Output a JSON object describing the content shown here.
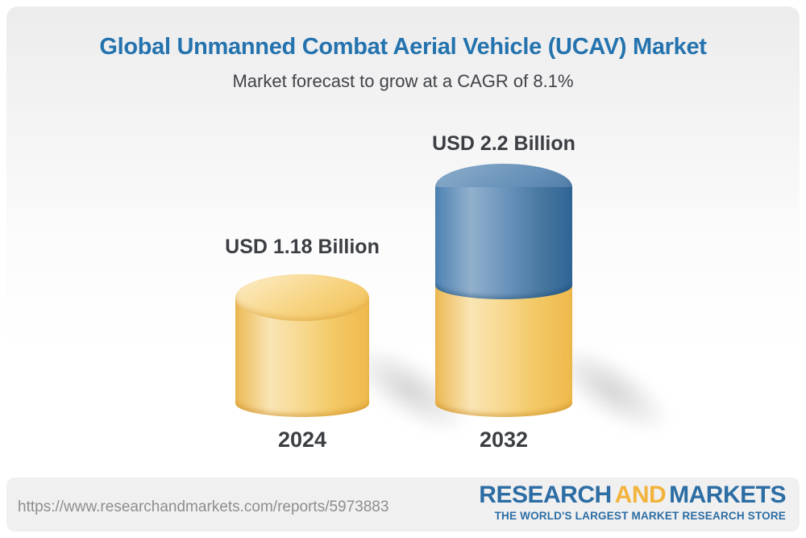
{
  "header": {
    "title": "Global Unmanned Combat Aerial Vehicle (UCAV) Market",
    "subtitle": "Market forecast to grow at a CAGR of 8.1%"
  },
  "chart_data": {
    "type": "bar",
    "categories": [
      "2024",
      "2032"
    ],
    "values": [
      1.18,
      2.2
    ],
    "value_labels": [
      "USD 1.18 Billion",
      "USD 2.2 Billion"
    ],
    "units": "USD Billion",
    "cagr": "8.1%",
    "title": "Global Unmanned Combat Aerial Vehicle (UCAV) Market",
    "subtitle": "Market forecast to grow at a CAGR of 8.1%",
    "legend": "none",
    "notes": "3D cylinder bars; 2032 bar is stacked: gold base segment equals the 2024 value (1.18) and a blue top segment represents growth to 2.2",
    "colors": {
      "bar_gold": "#F3C45F",
      "bar_blue": "#4A7BA9",
      "title_blue": "#2473AE",
      "label_gray": "#3B3E42"
    }
  },
  "footer": {
    "url": "https://www.researchandmarkets.com/reports/5973883",
    "logo": {
      "part1": "RESEARCH",
      "part2": "AND",
      "part3": "MARKETS",
      "tagline": "THE WORLD'S LARGEST MARKET RESEARCH STORE",
      "blue": "#2C6DA4",
      "gold": "#F2B33D"
    }
  }
}
